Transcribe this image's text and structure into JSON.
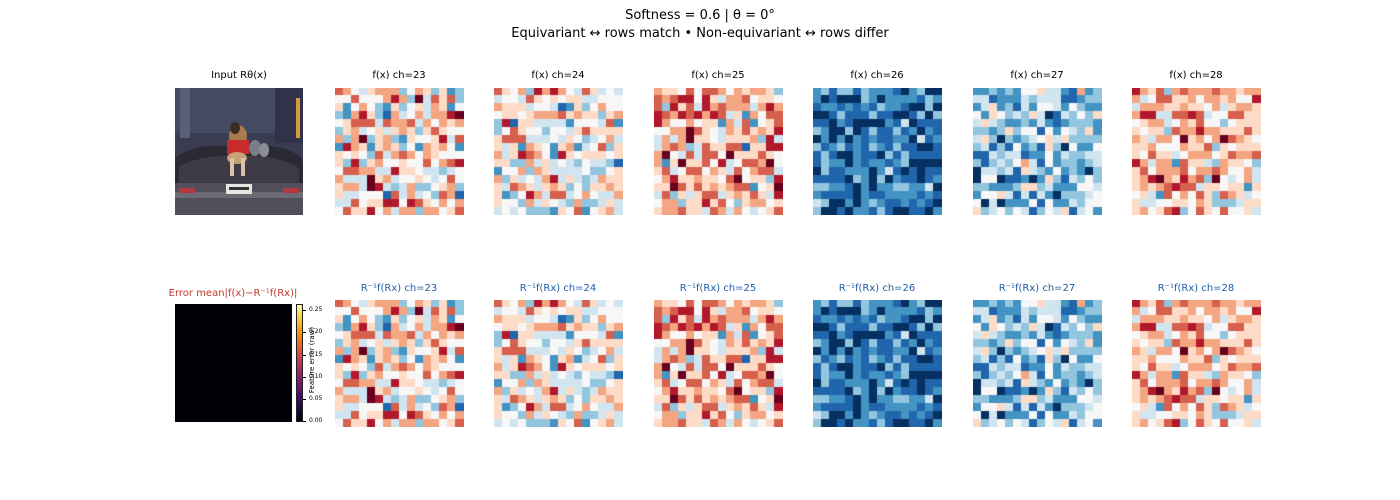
{
  "header": {
    "line1": "Softness = 0.6   |   θ = 0°",
    "line2": "Equivariant ↔ rows match   •   Non-equivariant ↔ rows differ"
  },
  "input_panel": {
    "title": "Input Rθ(x)"
  },
  "error_panel": {
    "title": "Error  mean|f(x)−R⁻¹f(Rx)|",
    "colorbar_label": "Feature error (raw)",
    "colorbar_ticks": [
      "0.25",
      "0.20",
      "0.15",
      "0.10",
      "0.05",
      "0.00"
    ],
    "colormap": [
      "#000004",
      "#fcffa4"
    ]
  },
  "top_titles": [
    "f(x) ch=23",
    "f(x) ch=24",
    "f(x) ch=25",
    "f(x) ch=26",
    "f(x) ch=27",
    "f(x) ch=28"
  ],
  "bottom_titles": [
    "R⁻¹f(Rx) ch=23",
    "R⁻¹f(Rx) ch=24",
    "R⁻¹f(Rx) ch=25",
    "R⁻¹f(Rx) ch=26",
    "R⁻¹f(Rx) ch=27",
    "R⁻¹f(Rx) ch=28"
  ],
  "colors": {
    "title_blue": "#1f5fa8",
    "error_orange": "#c0392b",
    "diverging_map": [
      "#053061",
      "#2166ac",
      "#4393c3",
      "#92c5de",
      "#d1e5f0",
      "#f7f7f7",
      "#fddbc7",
      "#f4a582",
      "#d6604d",
      "#b2182b",
      "#67001f"
    ]
  }
}
